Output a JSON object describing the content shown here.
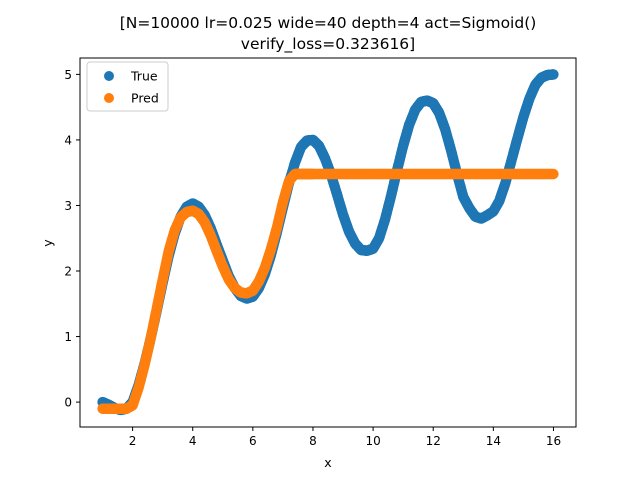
{
  "chart_data": {
    "type": "scatter",
    "title_lines": [
      "[N=10000 lr=0.025 wide=40 depth=4 act=Sigmoid()",
      "verify_loss=0.323616]"
    ],
    "xlabel": "x",
    "ylabel": "y",
    "xlim": [
      0.25,
      16.75
    ],
    "ylim": [
      -0.38,
      5.25
    ],
    "xticks": [
      2,
      4,
      6,
      8,
      10,
      12,
      14,
      16
    ],
    "yticks": [
      0,
      1,
      2,
      3,
      4,
      5
    ],
    "legend_position": "top-left",
    "series": [
      {
        "name": "True",
        "color": "#1f77b4",
        "x": [
          1.0,
          1.2,
          1.4,
          1.6,
          1.8,
          2.0,
          2.2,
          2.4,
          2.6,
          2.8,
          3.0,
          3.2,
          3.4,
          3.6,
          3.8,
          4.0,
          4.2,
          4.4,
          4.6,
          4.8,
          5.0,
          5.2,
          5.4,
          5.6,
          5.8,
          6.0,
          6.2,
          6.4,
          6.6,
          6.8,
          7.0,
          7.2,
          7.4,
          7.6,
          7.8,
          8.0,
          8.2,
          8.4,
          8.6,
          8.8,
          9.0,
          9.2,
          9.4,
          9.6,
          9.8,
          10.0,
          10.2,
          10.4,
          10.6,
          10.8,
          11.0,
          11.2,
          11.4,
          11.6,
          11.8,
          12.0,
          12.2,
          12.4,
          12.6,
          12.8,
          13.0,
          13.2,
          13.4,
          13.6,
          13.8,
          14.0,
          14.2,
          14.4,
          14.6,
          14.8,
          15.0,
          15.2,
          15.4,
          15.6,
          15.8,
          16.0
        ],
        "y": [
          0.0,
          -0.04,
          -0.09,
          -0.12,
          -0.1,
          0.0,
          0.26,
          0.59,
          0.97,
          1.39,
          1.82,
          2.23,
          2.57,
          2.83,
          2.98,
          3.03,
          2.98,
          2.85,
          2.65,
          2.4,
          2.16,
          1.92,
          1.74,
          1.62,
          1.58,
          1.61,
          1.74,
          1.95,
          2.24,
          2.59,
          2.97,
          3.34,
          3.65,
          3.89,
          3.99,
          4.0,
          3.91,
          3.72,
          3.47,
          3.17,
          2.86,
          2.6,
          2.42,
          2.32,
          2.31,
          2.34,
          2.5,
          2.79,
          3.15,
          3.54,
          3.91,
          4.23,
          4.46,
          4.58,
          4.6,
          4.56,
          4.41,
          4.16,
          3.83,
          3.47,
          3.13,
          2.96,
          2.83,
          2.8,
          2.85,
          2.91,
          3.07,
          3.34,
          3.68,
          4.02,
          4.35,
          4.63,
          4.84,
          4.95,
          4.99,
          5.0
        ]
      },
      {
        "name": "Pred",
        "color": "#ff7f0e",
        "x": [
          1.0,
          1.2,
          1.4,
          1.6,
          1.8,
          2.0,
          2.2,
          2.4,
          2.6,
          2.8,
          3.0,
          3.2,
          3.4,
          3.6,
          3.8,
          4.0,
          4.2,
          4.4,
          4.6,
          4.8,
          5.0,
          5.2,
          5.4,
          5.6,
          5.8,
          6.0,
          6.2,
          6.4,
          6.6,
          6.8,
          7.0,
          7.2,
          7.4,
          7.6,
          7.8,
          8.0,
          8.5,
          9.0,
          9.5,
          10.0,
          10.5,
          11.0,
          11.5,
          12.0,
          12.5,
          13.0,
          13.5,
          14.0,
          14.5,
          15.0,
          15.5,
          16.0
        ],
        "y": [
          -0.1,
          -0.1,
          -0.1,
          -0.1,
          -0.1,
          -0.05,
          0.22,
          0.57,
          0.97,
          1.42,
          1.87,
          2.3,
          2.62,
          2.82,
          2.9,
          2.92,
          2.87,
          2.74,
          2.54,
          2.3,
          2.07,
          1.87,
          1.74,
          1.67,
          1.66,
          1.7,
          1.84,
          2.05,
          2.33,
          2.66,
          3.05,
          3.37,
          3.48,
          3.48,
          3.48,
          3.48,
          3.48,
          3.48,
          3.48,
          3.48,
          3.48,
          3.48,
          3.48,
          3.48,
          3.48,
          3.48,
          3.48,
          3.48,
          3.48,
          3.48,
          3.48,
          3.48
        ]
      }
    ]
  }
}
